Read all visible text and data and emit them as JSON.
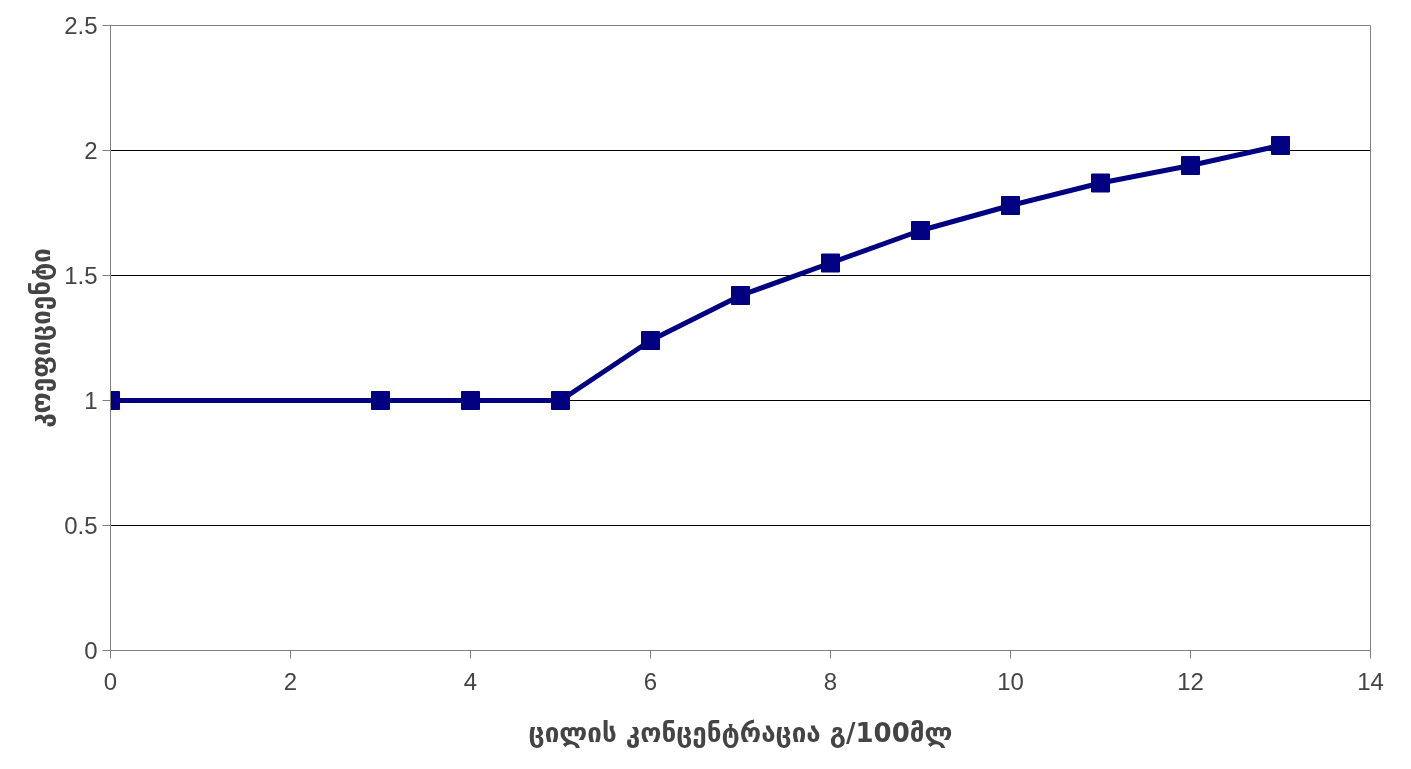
{
  "chart_data": {
    "type": "line",
    "xlabel": "ცილის კონცენტრაცია გ/100მლ",
    "ylabel": "კოეფიციენტი",
    "x": [
      0,
      3,
      4,
      5,
      6,
      7,
      8,
      9,
      10,
      11,
      12,
      13
    ],
    "series": [
      {
        "color": "#000080",
        "values": [
          1,
          1,
          1,
          1,
          1.24,
          1.42,
          1.55,
          1.68,
          1.78,
          1.87,
          1.94,
          2.02
        ]
      }
    ],
    "xlim": [
      0,
      14
    ],
    "xticks": [
      0,
      2,
      4,
      6,
      8,
      10,
      12,
      14
    ],
    "ylim": [
      0,
      2.5
    ],
    "yticks": [
      0,
      0.5,
      1,
      1.5,
      2,
      2.5
    ],
    "grid": "y",
    "marker": "square",
    "line_style": "solid"
  }
}
